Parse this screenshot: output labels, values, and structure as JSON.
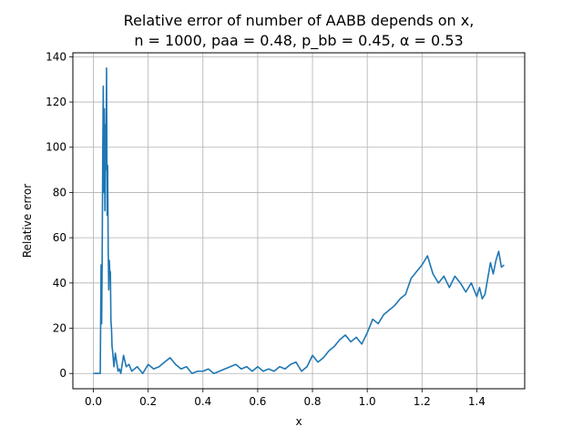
{
  "chart_data": {
    "type": "line",
    "title_line1": "Relative error of number of AABB depends on x,",
    "title_line2": "n = 1000, paa = 0.48, p_bb = 0.45, α = 0.53",
    "xlabel": "x",
    "ylabel": "Relative error",
    "xlim": [
      -0.075,
      1.575
    ],
    "ylim": [
      -6.75,
      141.75
    ],
    "xticks": [
      0.0,
      0.2,
      0.4,
      0.6,
      0.8,
      1.0,
      1.2,
      1.4
    ],
    "xtick_labels": [
      "0.0",
      "0.2",
      "0.4",
      "0.6",
      "0.8",
      "1.0",
      "1.2",
      "1.4"
    ],
    "yticks": [
      0,
      20,
      40,
      60,
      80,
      100,
      120,
      140
    ],
    "ytick_labels": [
      "0",
      "20",
      "40",
      "60",
      "80",
      "100",
      "120",
      "140"
    ],
    "grid": true,
    "line_color": "#1f77b4",
    "series": [
      {
        "x": [
          0.0,
          0.01,
          0.02,
          0.025,
          0.028,
          0.03,
          0.032,
          0.034,
          0.036,
          0.038,
          0.04,
          0.042,
          0.044,
          0.046,
          0.048,
          0.05,
          0.052,
          0.054,
          0.056,
          0.058,
          0.06,
          0.062,
          0.064,
          0.066,
          0.068,
          0.07,
          0.075,
          0.08,
          0.085,
          0.09,
          0.095,
          0.1,
          0.11,
          0.12,
          0.13,
          0.14,
          0.15,
          0.16,
          0.18,
          0.2,
          0.22,
          0.24,
          0.26,
          0.28,
          0.3,
          0.32,
          0.34,
          0.36,
          0.38,
          0.4,
          0.42,
          0.44,
          0.46,
          0.48,
          0.5,
          0.52,
          0.54,
          0.56,
          0.58,
          0.6,
          0.62,
          0.64,
          0.66,
          0.68,
          0.7,
          0.72,
          0.74,
          0.76,
          0.78,
          0.8,
          0.82,
          0.84,
          0.86,
          0.88,
          0.9,
          0.92,
          0.94,
          0.96,
          0.98,
          1.0,
          1.02,
          1.04,
          1.06,
          1.08,
          1.1,
          1.12,
          1.14,
          1.16,
          1.18,
          1.2,
          1.21,
          1.22,
          1.24,
          1.26,
          1.28,
          1.3,
          1.32,
          1.34,
          1.36,
          1.38,
          1.4,
          1.41,
          1.42,
          1.43,
          1.44,
          1.45,
          1.46,
          1.47,
          1.48,
          1.49,
          1.5
        ],
        "y": [
          0,
          0,
          0,
          0,
          48,
          22,
          50,
          95,
          127,
          80,
          117,
          72,
          110,
          90,
          135,
          70,
          92,
          55,
          37,
          50,
          44,
          45,
          23,
          20,
          12,
          10,
          3,
          9,
          5,
          1,
          2,
          0,
          8,
          3,
          4,
          1,
          2,
          3,
          0,
          4,
          2,
          3,
          5,
          7,
          4,
          2,
          3,
          0,
          1,
          1,
          2,
          0,
          1,
          2,
          3,
          4,
          2,
          3,
          1,
          3,
          1,
          2,
          1,
          3,
          2,
          4,
          5,
          1,
          3,
          8,
          5,
          7,
          10,
          12,
          15,
          17,
          14,
          16,
          13,
          18,
          24,
          22,
          26,
          28,
          30,
          33,
          35,
          42,
          45,
          48,
          50,
          52,
          44,
          40,
          43,
          38,
          43,
          40,
          36,
          40,
          34,
          38,
          33,
          35,
          42,
          49,
          44,
          50,
          54,
          47,
          48
        ]
      }
    ]
  }
}
